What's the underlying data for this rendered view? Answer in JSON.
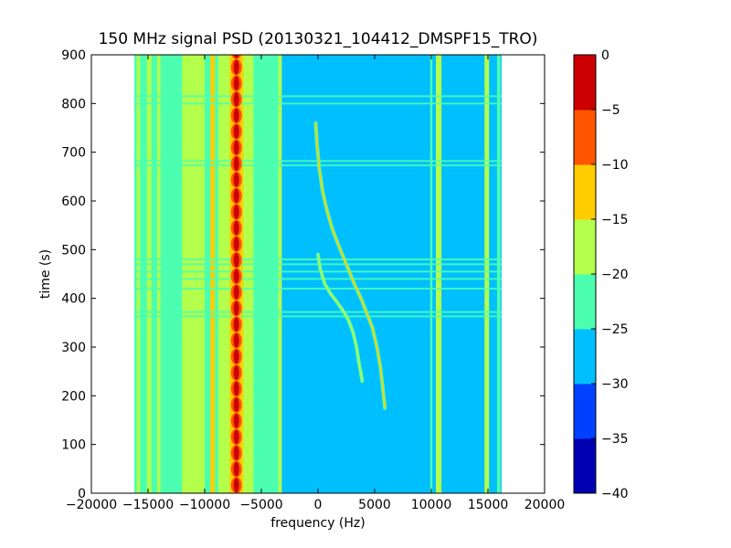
{
  "chart_data": {
    "type": "heatmap",
    "title": "150 MHz signal PSD (20130321_104412_DMSPF15_TRO)",
    "xlabel": "frequency (Hz)",
    "ylabel": "time (s)",
    "xlim": [
      -20000,
      20000
    ],
    "ylim": [
      0,
      900
    ],
    "xticks": [
      -20000,
      -15000,
      -10000,
      -5000,
      0,
      5000,
      10000,
      15000,
      20000
    ],
    "xtick_labels": [
      "−20000",
      "−15000",
      "−10000",
      "−5000",
      "0",
      "5000",
      "10000",
      "15000",
      "20000"
    ],
    "yticks": [
      0,
      100,
      200,
      300,
      400,
      500,
      600,
      700,
      800,
      900
    ],
    "ytick_labels": [
      "0",
      "100",
      "200",
      "300",
      "400",
      "500",
      "600",
      "700",
      "800",
      "900"
    ],
    "data_extent_x": [
      -16200,
      16200
    ],
    "data_extent_y": [
      0,
      900
    ],
    "background_level": -27.5,
    "colorbar": {
      "levels": [
        -40,
        -35,
        -30,
        -25,
        -20,
        -15,
        -10,
        -5,
        0
      ],
      "tick_labels": [
        "−40",
        "−35",
        "−30",
        "−25",
        "−20",
        "−15",
        "−10",
        "−5",
        "0"
      ],
      "colors": [
        "#0000b3",
        "#0040ff",
        "#00bfff",
        "#4cffb0",
        "#b3ff4c",
        "#ffcc00",
        "#ff5500",
        "#cc0000"
      ]
    },
    "carrier": {
      "frequency": -7200,
      "level": -2.5,
      "pulse_period_s": 33
    },
    "vertical_bands": [
      {
        "from": -16200,
        "to": -3200,
        "level": -22.5
      },
      {
        "from": -12000,
        "to": -10000,
        "level": -17.5
      },
      {
        "from": -9500,
        "to": -9100,
        "level": -12.5
      },
      {
        "from": -8800,
        "to": -5700,
        "level": -17.5
      },
      {
        "from": -7800,
        "to": -7500,
        "level": -12.5
      },
      {
        "from": -6900,
        "to": -6600,
        "level": -12.5
      },
      {
        "from": -16000,
        "to": -15700,
        "level": -17.5
      },
      {
        "from": -15100,
        "to": -14700,
        "level": -17.5
      },
      {
        "from": -14200,
        "to": -13900,
        "level": -17.5
      },
      {
        "from": -3500,
        "to": -3200,
        "level": -17.5
      },
      {
        "from": 9900,
        "to": 10100,
        "level": -22.5
      },
      {
        "from": 10400,
        "to": 10900,
        "level": -17.5
      },
      {
        "from": 14700,
        "to": 15100,
        "level": -17.5
      },
      {
        "from": 15800,
        "to": 16100,
        "level": -22.5
      }
    ],
    "horizontal_bands": [
      {
        "t": 363,
        "level": -22.5
      },
      {
        "t": 372,
        "level": -22.5
      },
      {
        "t": 420,
        "level": -22.5
      },
      {
        "t": 440,
        "level": -22.5
      },
      {
        "t": 455,
        "level": -22.5
      },
      {
        "t": 470,
        "level": -22.5
      },
      {
        "t": 480,
        "level": -22.5
      },
      {
        "t": 673,
        "level": -22.5
      },
      {
        "t": 682,
        "level": -22.5
      },
      {
        "t": 800,
        "level": -22.5
      },
      {
        "t": 815,
        "level": -22.5
      }
    ],
    "doppler_traces": [
      {
        "name": "primary",
        "level": -12.5,
        "points": [
          [
            -200,
            760
          ],
          [
            -100,
            720
          ],
          [
            100,
            670
          ],
          [
            400,
            620
          ],
          [
            800,
            580
          ],
          [
            1300,
            540
          ],
          [
            1800,
            510
          ],
          [
            2500,
            470
          ],
          [
            3200,
            430
          ],
          [
            3800,
            400
          ],
          [
            4300,
            370
          ],
          [
            4800,
            340
          ],
          [
            5200,
            300
          ],
          [
            5500,
            260
          ],
          [
            5700,
            220
          ],
          [
            5900,
            175
          ]
        ]
      },
      {
        "name": "secondary",
        "level": -17.5,
        "points": [
          [
            0,
            490
          ],
          [
            200,
            460
          ],
          [
            600,
            430
          ],
          [
            1100,
            410
          ],
          [
            1600,
            395
          ],
          [
            2200,
            375
          ],
          [
            2700,
            355
          ],
          [
            3100,
            330
          ],
          [
            3400,
            300
          ],
          [
            3600,
            270
          ],
          [
            3800,
            245
          ],
          [
            3900,
            230
          ]
        ]
      }
    ]
  }
}
